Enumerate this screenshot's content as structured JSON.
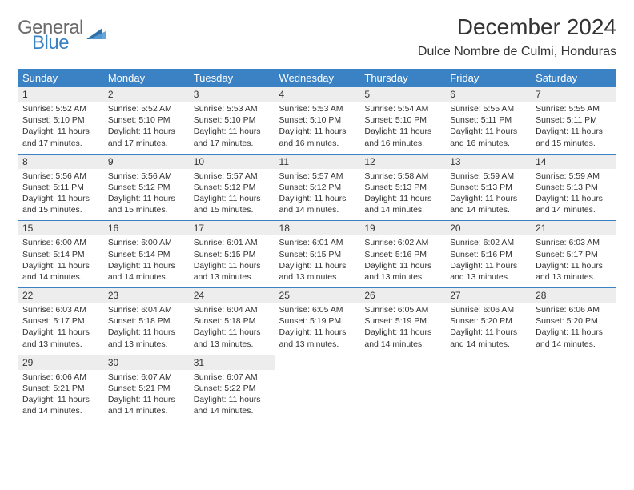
{
  "logo": {
    "general": "General",
    "blue": "Blue"
  },
  "title": "December 2024",
  "location": "Dulce Nombre de Culmi, Honduras",
  "colors": {
    "accent": "#3b82c4",
    "header_bg": "#3b82c4",
    "daynum_bg": "#ededed",
    "text": "#333333"
  },
  "dayHeaders": [
    "Sunday",
    "Monday",
    "Tuesday",
    "Wednesday",
    "Thursday",
    "Friday",
    "Saturday"
  ],
  "weeks": [
    [
      {
        "n": "1",
        "sr": "Sunrise: 5:52 AM",
        "ss": "Sunset: 5:10 PM",
        "d1": "Daylight: 11 hours",
        "d2": "and 17 minutes."
      },
      {
        "n": "2",
        "sr": "Sunrise: 5:52 AM",
        "ss": "Sunset: 5:10 PM",
        "d1": "Daylight: 11 hours",
        "d2": "and 17 minutes."
      },
      {
        "n": "3",
        "sr": "Sunrise: 5:53 AM",
        "ss": "Sunset: 5:10 PM",
        "d1": "Daylight: 11 hours",
        "d2": "and 17 minutes."
      },
      {
        "n": "4",
        "sr": "Sunrise: 5:53 AM",
        "ss": "Sunset: 5:10 PM",
        "d1": "Daylight: 11 hours",
        "d2": "and 16 minutes."
      },
      {
        "n": "5",
        "sr": "Sunrise: 5:54 AM",
        "ss": "Sunset: 5:10 PM",
        "d1": "Daylight: 11 hours",
        "d2": "and 16 minutes."
      },
      {
        "n": "6",
        "sr": "Sunrise: 5:55 AM",
        "ss": "Sunset: 5:11 PM",
        "d1": "Daylight: 11 hours",
        "d2": "and 16 minutes."
      },
      {
        "n": "7",
        "sr": "Sunrise: 5:55 AM",
        "ss": "Sunset: 5:11 PM",
        "d1": "Daylight: 11 hours",
        "d2": "and 15 minutes."
      }
    ],
    [
      {
        "n": "8",
        "sr": "Sunrise: 5:56 AM",
        "ss": "Sunset: 5:11 PM",
        "d1": "Daylight: 11 hours",
        "d2": "and 15 minutes."
      },
      {
        "n": "9",
        "sr": "Sunrise: 5:56 AM",
        "ss": "Sunset: 5:12 PM",
        "d1": "Daylight: 11 hours",
        "d2": "and 15 minutes."
      },
      {
        "n": "10",
        "sr": "Sunrise: 5:57 AM",
        "ss": "Sunset: 5:12 PM",
        "d1": "Daylight: 11 hours",
        "d2": "and 15 minutes."
      },
      {
        "n": "11",
        "sr": "Sunrise: 5:57 AM",
        "ss": "Sunset: 5:12 PM",
        "d1": "Daylight: 11 hours",
        "d2": "and 14 minutes."
      },
      {
        "n": "12",
        "sr": "Sunrise: 5:58 AM",
        "ss": "Sunset: 5:13 PM",
        "d1": "Daylight: 11 hours",
        "d2": "and 14 minutes."
      },
      {
        "n": "13",
        "sr": "Sunrise: 5:59 AM",
        "ss": "Sunset: 5:13 PM",
        "d1": "Daylight: 11 hours",
        "d2": "and 14 minutes."
      },
      {
        "n": "14",
        "sr": "Sunrise: 5:59 AM",
        "ss": "Sunset: 5:13 PM",
        "d1": "Daylight: 11 hours",
        "d2": "and 14 minutes."
      }
    ],
    [
      {
        "n": "15",
        "sr": "Sunrise: 6:00 AM",
        "ss": "Sunset: 5:14 PM",
        "d1": "Daylight: 11 hours",
        "d2": "and 14 minutes."
      },
      {
        "n": "16",
        "sr": "Sunrise: 6:00 AM",
        "ss": "Sunset: 5:14 PM",
        "d1": "Daylight: 11 hours",
        "d2": "and 14 minutes."
      },
      {
        "n": "17",
        "sr": "Sunrise: 6:01 AM",
        "ss": "Sunset: 5:15 PM",
        "d1": "Daylight: 11 hours",
        "d2": "and 13 minutes."
      },
      {
        "n": "18",
        "sr": "Sunrise: 6:01 AM",
        "ss": "Sunset: 5:15 PM",
        "d1": "Daylight: 11 hours",
        "d2": "and 13 minutes."
      },
      {
        "n": "19",
        "sr": "Sunrise: 6:02 AM",
        "ss": "Sunset: 5:16 PM",
        "d1": "Daylight: 11 hours",
        "d2": "and 13 minutes."
      },
      {
        "n": "20",
        "sr": "Sunrise: 6:02 AM",
        "ss": "Sunset: 5:16 PM",
        "d1": "Daylight: 11 hours",
        "d2": "and 13 minutes."
      },
      {
        "n": "21",
        "sr": "Sunrise: 6:03 AM",
        "ss": "Sunset: 5:17 PM",
        "d1": "Daylight: 11 hours",
        "d2": "and 13 minutes."
      }
    ],
    [
      {
        "n": "22",
        "sr": "Sunrise: 6:03 AM",
        "ss": "Sunset: 5:17 PM",
        "d1": "Daylight: 11 hours",
        "d2": "and 13 minutes."
      },
      {
        "n": "23",
        "sr": "Sunrise: 6:04 AM",
        "ss": "Sunset: 5:18 PM",
        "d1": "Daylight: 11 hours",
        "d2": "and 13 minutes."
      },
      {
        "n": "24",
        "sr": "Sunrise: 6:04 AM",
        "ss": "Sunset: 5:18 PM",
        "d1": "Daylight: 11 hours",
        "d2": "and 13 minutes."
      },
      {
        "n": "25",
        "sr": "Sunrise: 6:05 AM",
        "ss": "Sunset: 5:19 PM",
        "d1": "Daylight: 11 hours",
        "d2": "and 13 minutes."
      },
      {
        "n": "26",
        "sr": "Sunrise: 6:05 AM",
        "ss": "Sunset: 5:19 PM",
        "d1": "Daylight: 11 hours",
        "d2": "and 14 minutes."
      },
      {
        "n": "27",
        "sr": "Sunrise: 6:06 AM",
        "ss": "Sunset: 5:20 PM",
        "d1": "Daylight: 11 hours",
        "d2": "and 14 minutes."
      },
      {
        "n": "28",
        "sr": "Sunrise: 6:06 AM",
        "ss": "Sunset: 5:20 PM",
        "d1": "Daylight: 11 hours",
        "d2": "and 14 minutes."
      }
    ],
    [
      {
        "n": "29",
        "sr": "Sunrise: 6:06 AM",
        "ss": "Sunset: 5:21 PM",
        "d1": "Daylight: 11 hours",
        "d2": "and 14 minutes."
      },
      {
        "n": "30",
        "sr": "Sunrise: 6:07 AM",
        "ss": "Sunset: 5:21 PM",
        "d1": "Daylight: 11 hours",
        "d2": "and 14 minutes."
      },
      {
        "n": "31",
        "sr": "Sunrise: 6:07 AM",
        "ss": "Sunset: 5:22 PM",
        "d1": "Daylight: 11 hours",
        "d2": "and 14 minutes."
      },
      null,
      null,
      null,
      null
    ]
  ]
}
